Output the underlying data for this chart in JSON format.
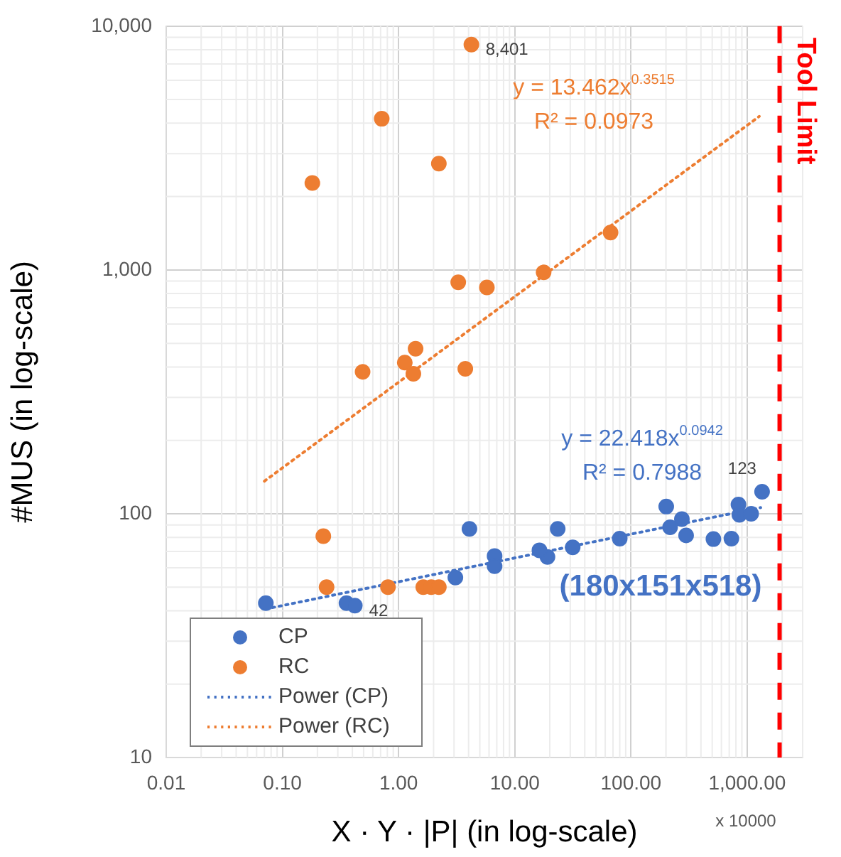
{
  "chart_data": {
    "type": "scatter",
    "xlabel": "X · Y · |P| (in log-scale)",
    "ylabel": "#MUS (in log-scale)",
    "log": "xy",
    "grid": true,
    "legend": "bottom left",
    "marker": "circle",
    "xlim": [
      0.01,
      3000
    ],
    "ylim": [
      10,
      10000
    ],
    "xticks": [
      {
        "value": 0.01,
        "label": "0.01"
      },
      {
        "value": 0.1,
        "label": "0.10"
      },
      {
        "value": 1,
        "label": "1.00"
      },
      {
        "value": 10,
        "label": "10.00"
      },
      {
        "value": 100,
        "label": "100.00"
      },
      {
        "value": 1000,
        "label": "1,000.00"
      }
    ],
    "yticks": [
      10,
      100,
      {
        "value": 1000,
        "label": "1,000"
      },
      {
        "value": 10000,
        "label": "10,000"
      }
    ],
    "series": [
      {
        "name": "CP",
        "type": "scatter",
        "color": "#4472c4",
        "x": [
          1343,
          841,
          857,
          1081,
          201,
          217,
          274,
          298,
          512,
          731,
          80,
          31.5,
          23.4,
          19.1,
          16.3,
          4.07,
          6.7,
          6.7,
          3.08,
          0.072,
          0.356,
          0.42
        ],
        "values": [
          123,
          109,
          99,
          100,
          107,
          88,
          95,
          81.5,
          78.7,
          79,
          79,
          72.8,
          86.7,
          66.5,
          70.8,
          86.7,
          67.1,
          60.9,
          54.7,
          43,
          43,
          42
        ],
        "value_labels": [
          "123",
          null,
          null,
          null,
          null,
          null,
          null,
          null,
          null,
          null,
          null,
          null,
          null,
          null,
          null,
          null,
          null,
          null,
          null,
          null,
          null,
          "42"
        ]
      },
      {
        "name": "RC",
        "type": "scatter",
        "color": "#ed7d31",
        "x": [
          4.23,
          0.716,
          2.22,
          0.181,
          66.7,
          17.7,
          3.26,
          5.75,
          1.4,
          1.13,
          1.34,
          0.49,
          3.75,
          0.225,
          0.24,
          0.81,
          1.63,
          1.91,
          2.22
        ],
        "values": [
          8401,
          4170,
          2730,
          2275,
          1423,
          977,
          890,
          848,
          475,
          417,
          375,
          382,
          393,
          80.9,
          50,
          50,
          50,
          50,
          50
        ],
        "value_labels": [
          "8,401",
          null,
          null,
          null,
          null,
          null,
          null,
          null,
          null,
          null,
          null,
          null,
          null,
          null,
          null,
          null,
          null,
          null,
          null
        ]
      },
      {
        "name": "Power (CP)",
        "type": "line",
        "color": "#4472c4",
        "line_style": "dotted",
        "marker": "none",
        "x": [
          0.082,
          1306
        ],
        "values": [
          41.2,
          106
        ]
      },
      {
        "name": "Power (RC)",
        "type": "line",
        "color": "#ed7d31",
        "line_style": "dotted",
        "marker": "none",
        "x": [
          0.07,
          1270
        ],
        "values": [
          136,
          4265
        ]
      }
    ],
    "ref_lines": [
      {
        "axis": "x",
        "value": 1900,
        "label": "Tool Limit",
        "color": "#ff0000",
        "line_style": "dashed"
      }
    ],
    "annotations": [
      "y = 13.462x$^{0.3515}$",
      "R² = 0.0973",
      "y = 22.418x$^{0.0942}$",
      "R² = 0.7988",
      "(180x151x518)",
      "x 10000"
    ]
  }
}
